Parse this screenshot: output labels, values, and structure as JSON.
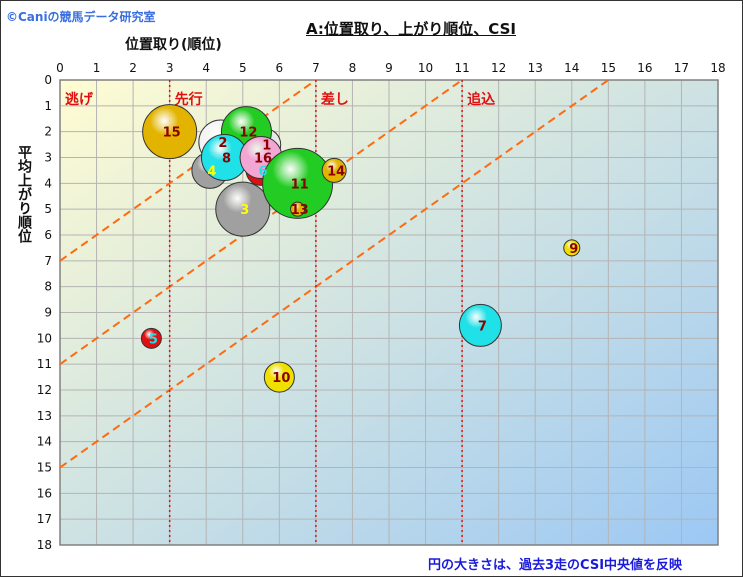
{
  "brand": "©Caniの競馬データ研究室",
  "note": "円の大きさは、過去3走のCSI中央値を反映",
  "colors": {
    "bg_start": "#fffcd2",
    "bg_end": "#9cc8f4",
    "guide": "#ff6a10",
    "divider": "#e01010",
    "label": "#e01010"
  },
  "chart_data": {
    "type": "scatter",
    "title": "A:位置取り、上がり順位、CSI",
    "xlabel": "位置取り(順位)",
    "ylabel": "平均上がり順位",
    "xlim": [
      0,
      18
    ],
    "ylim": [
      0,
      18
    ],
    "y_inverted": true,
    "x_axis_position": "top",
    "grid": true,
    "xticks": [
      0,
      1,
      2,
      3,
      4,
      5,
      6,
      7,
      8,
      9,
      10,
      11,
      12,
      13,
      14,
      15,
      16,
      17,
      18
    ],
    "yticks": [
      0,
      1,
      2,
      3,
      4,
      5,
      6,
      7,
      8,
      9,
      10,
      11,
      12,
      13,
      14,
      15,
      16,
      17,
      18
    ],
    "dividers": [
      3,
      7,
      11
    ],
    "zones": [
      {
        "label": "逃げ",
        "x": 0
      },
      {
        "label": "先行",
        "x": 3
      },
      {
        "label": "差し",
        "x": 7
      },
      {
        "label": "追込",
        "x": 11
      }
    ],
    "guide_lines": [
      {
        "intercept": 7
      },
      {
        "intercept": 11
      },
      {
        "intercept": 15
      }
    ],
    "points": [
      {
        "label": "15",
        "x": 3.0,
        "y": 2.0,
        "size": 27,
        "color": "#e2b400",
        "text": "#8b0000"
      },
      {
        "label": "2",
        "x": 4.4,
        "y": 2.4,
        "size": 22,
        "color": "#f4f4f4",
        "text": "#8b0000"
      },
      {
        "label": "1",
        "x": 5.6,
        "y": 2.5,
        "size": 16,
        "color": "#e8e8e8",
        "text": "#8b0000"
      },
      {
        "label": "4",
        "x": 4.1,
        "y": 3.5,
        "size": 18,
        "color": "#a0a0a0",
        "text": "#ffff00"
      },
      {
        "label": "12",
        "x": 5.1,
        "y": 2.0,
        "size": 25,
        "color": "#22cc22",
        "text": "#8b0000"
      },
      {
        "label": "8",
        "x": 4.5,
        "y": 3.0,
        "size": 23,
        "color": "#20e0e8",
        "text": "#8b0000"
      },
      {
        "label": "6",
        "x": 5.5,
        "y": 3.5,
        "size": 15,
        "color": "#e01010",
        "text": "#20e0e8"
      },
      {
        "label": "16",
        "x": 5.5,
        "y": 3.0,
        "size": 21,
        "color": "#f2a6d4",
        "text": "#8b0000"
      },
      {
        "label": "3",
        "x": 5.0,
        "y": 5.0,
        "size": 27,
        "color": "#a0a0a0",
        "text": "#ffff00"
      },
      {
        "label": "11",
        "x": 6.5,
        "y": 4.0,
        "size": 35,
        "color": "#22cc22",
        "text": "#8b0000"
      },
      {
        "label": "14",
        "x": 7.5,
        "y": 3.5,
        "size": 12,
        "color": "#e2b400",
        "text": "#8b0000"
      },
      {
        "label": "13",
        "x": 6.5,
        "y": 5.0,
        "size": 7,
        "color": "#e2b400",
        "text": "#8b0000"
      },
      {
        "label": "9",
        "x": 14.0,
        "y": 6.5,
        "size": 8,
        "color": "#f0e000",
        "text": "#8b0000"
      },
      {
        "label": "7",
        "x": 11.5,
        "y": 9.5,
        "size": 21,
        "color": "#20e0e8",
        "text": "#8b0000"
      },
      {
        "label": "5",
        "x": 2.5,
        "y": 10.0,
        "size": 10,
        "color": "#e01010",
        "text": "#20e0e8"
      },
      {
        "label": "10",
        "x": 6.0,
        "y": 11.5,
        "size": 15,
        "color": "#f0e000",
        "text": "#8b0000"
      }
    ]
  }
}
